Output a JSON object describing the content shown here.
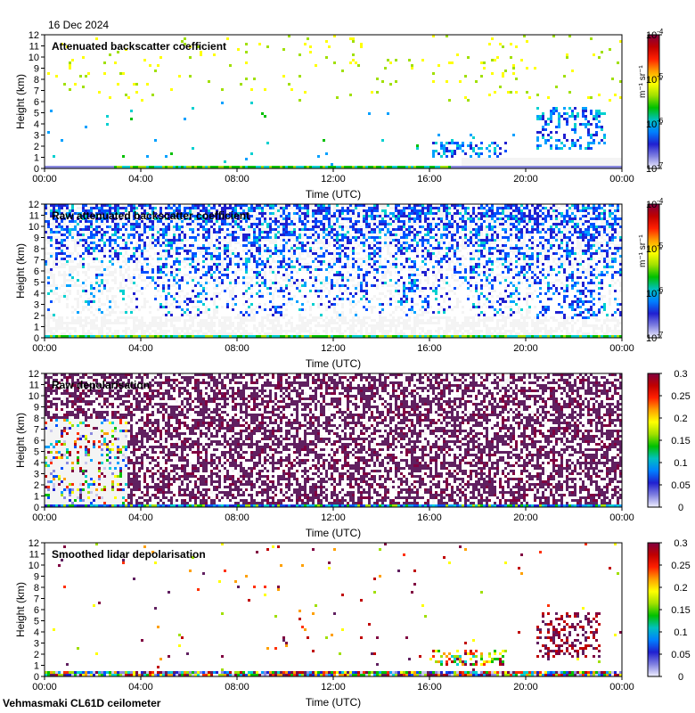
{
  "date": "16 Dec 2024",
  "footer": "Vehmasmaki CL61D ceilometer",
  "x_ticks": [
    "00:00",
    "04:00",
    "08:00",
    "12:00",
    "16:00",
    "20:00",
    "00:00"
  ],
  "y_ticks": [
    "0",
    "1",
    "2",
    "3",
    "4",
    "5",
    "6",
    "7",
    "8",
    "9",
    "10",
    "11",
    "12"
  ],
  "colorscale": [
    "#f4f4f4",
    "#c8c8ec",
    "#8a8ae0",
    "#2020d0",
    "#0050ff",
    "#00a0ff",
    "#00d0d0",
    "#00c000",
    "#a0e000",
    "#ffff00",
    "#ffa000",
    "#ff3000",
    "#c00000",
    "#800040",
    "#602060"
  ],
  "chart_data": [
    {
      "type": "heatmap",
      "title": "Attenuated backscatter coefficient",
      "xlabel": "Time (UTC)",
      "ylabel": "Height (km)",
      "xlim": [
        "00:00",
        "00:00"
      ],
      "ylim": [
        0,
        12
      ],
      "colorbar": {
        "kind": "log",
        "label": "m⁻¹ sr⁻¹",
        "ticks": [
          {
            "base": "10",
            "exp": "-4"
          },
          {
            "base": "10",
            "exp": "-5"
          },
          {
            "base": "10",
            "exp": "-6"
          },
          {
            "base": "10",
            "exp": "-7"
          }
        ]
      },
      "profile": "smoothed_backscatter"
    },
    {
      "type": "heatmap",
      "title": "Raw attenuated backscatter coefficient",
      "xlabel": "Time (UTC)",
      "ylabel": "Height (km)",
      "xlim": [
        "00:00",
        "00:00"
      ],
      "ylim": [
        0,
        12
      ],
      "colorbar": {
        "kind": "log",
        "label": "m⁻¹ sr⁻¹",
        "ticks": [
          {
            "base": "10",
            "exp": "-4"
          },
          {
            "base": "10",
            "exp": "-5"
          },
          {
            "base": "10",
            "exp": "-6"
          },
          {
            "base": "10",
            "exp": "-7"
          }
        ]
      },
      "profile": "raw_backscatter"
    },
    {
      "type": "heatmap",
      "title": "Raw depolarisation",
      "xlabel": "Time (UTC)",
      "ylabel": "Height (km)",
      "xlim": [
        "00:00",
        "00:00"
      ],
      "ylim": [
        0,
        12
      ],
      "colorbar": {
        "kind": "linear",
        "label": "",
        "ticks": [
          "0.3",
          "0.25",
          "0.2",
          "0.15",
          "0.1",
          "0.05",
          "0"
        ]
      },
      "profile": "raw_depol"
    },
    {
      "type": "heatmap",
      "title": "Smoothed lidar depolarisation",
      "xlabel": "Time (UTC)",
      "ylabel": "Height (km)",
      "xlim": [
        "00:00",
        "00:00"
      ],
      "ylim": [
        0,
        12
      ],
      "colorbar": {
        "kind": "linear",
        "label": "",
        "ticks": [
          "0.3",
          "0.25",
          "0.2",
          "0.15",
          "0.1",
          "0.05",
          "0"
        ]
      },
      "profile": "smoothed_depol"
    }
  ]
}
